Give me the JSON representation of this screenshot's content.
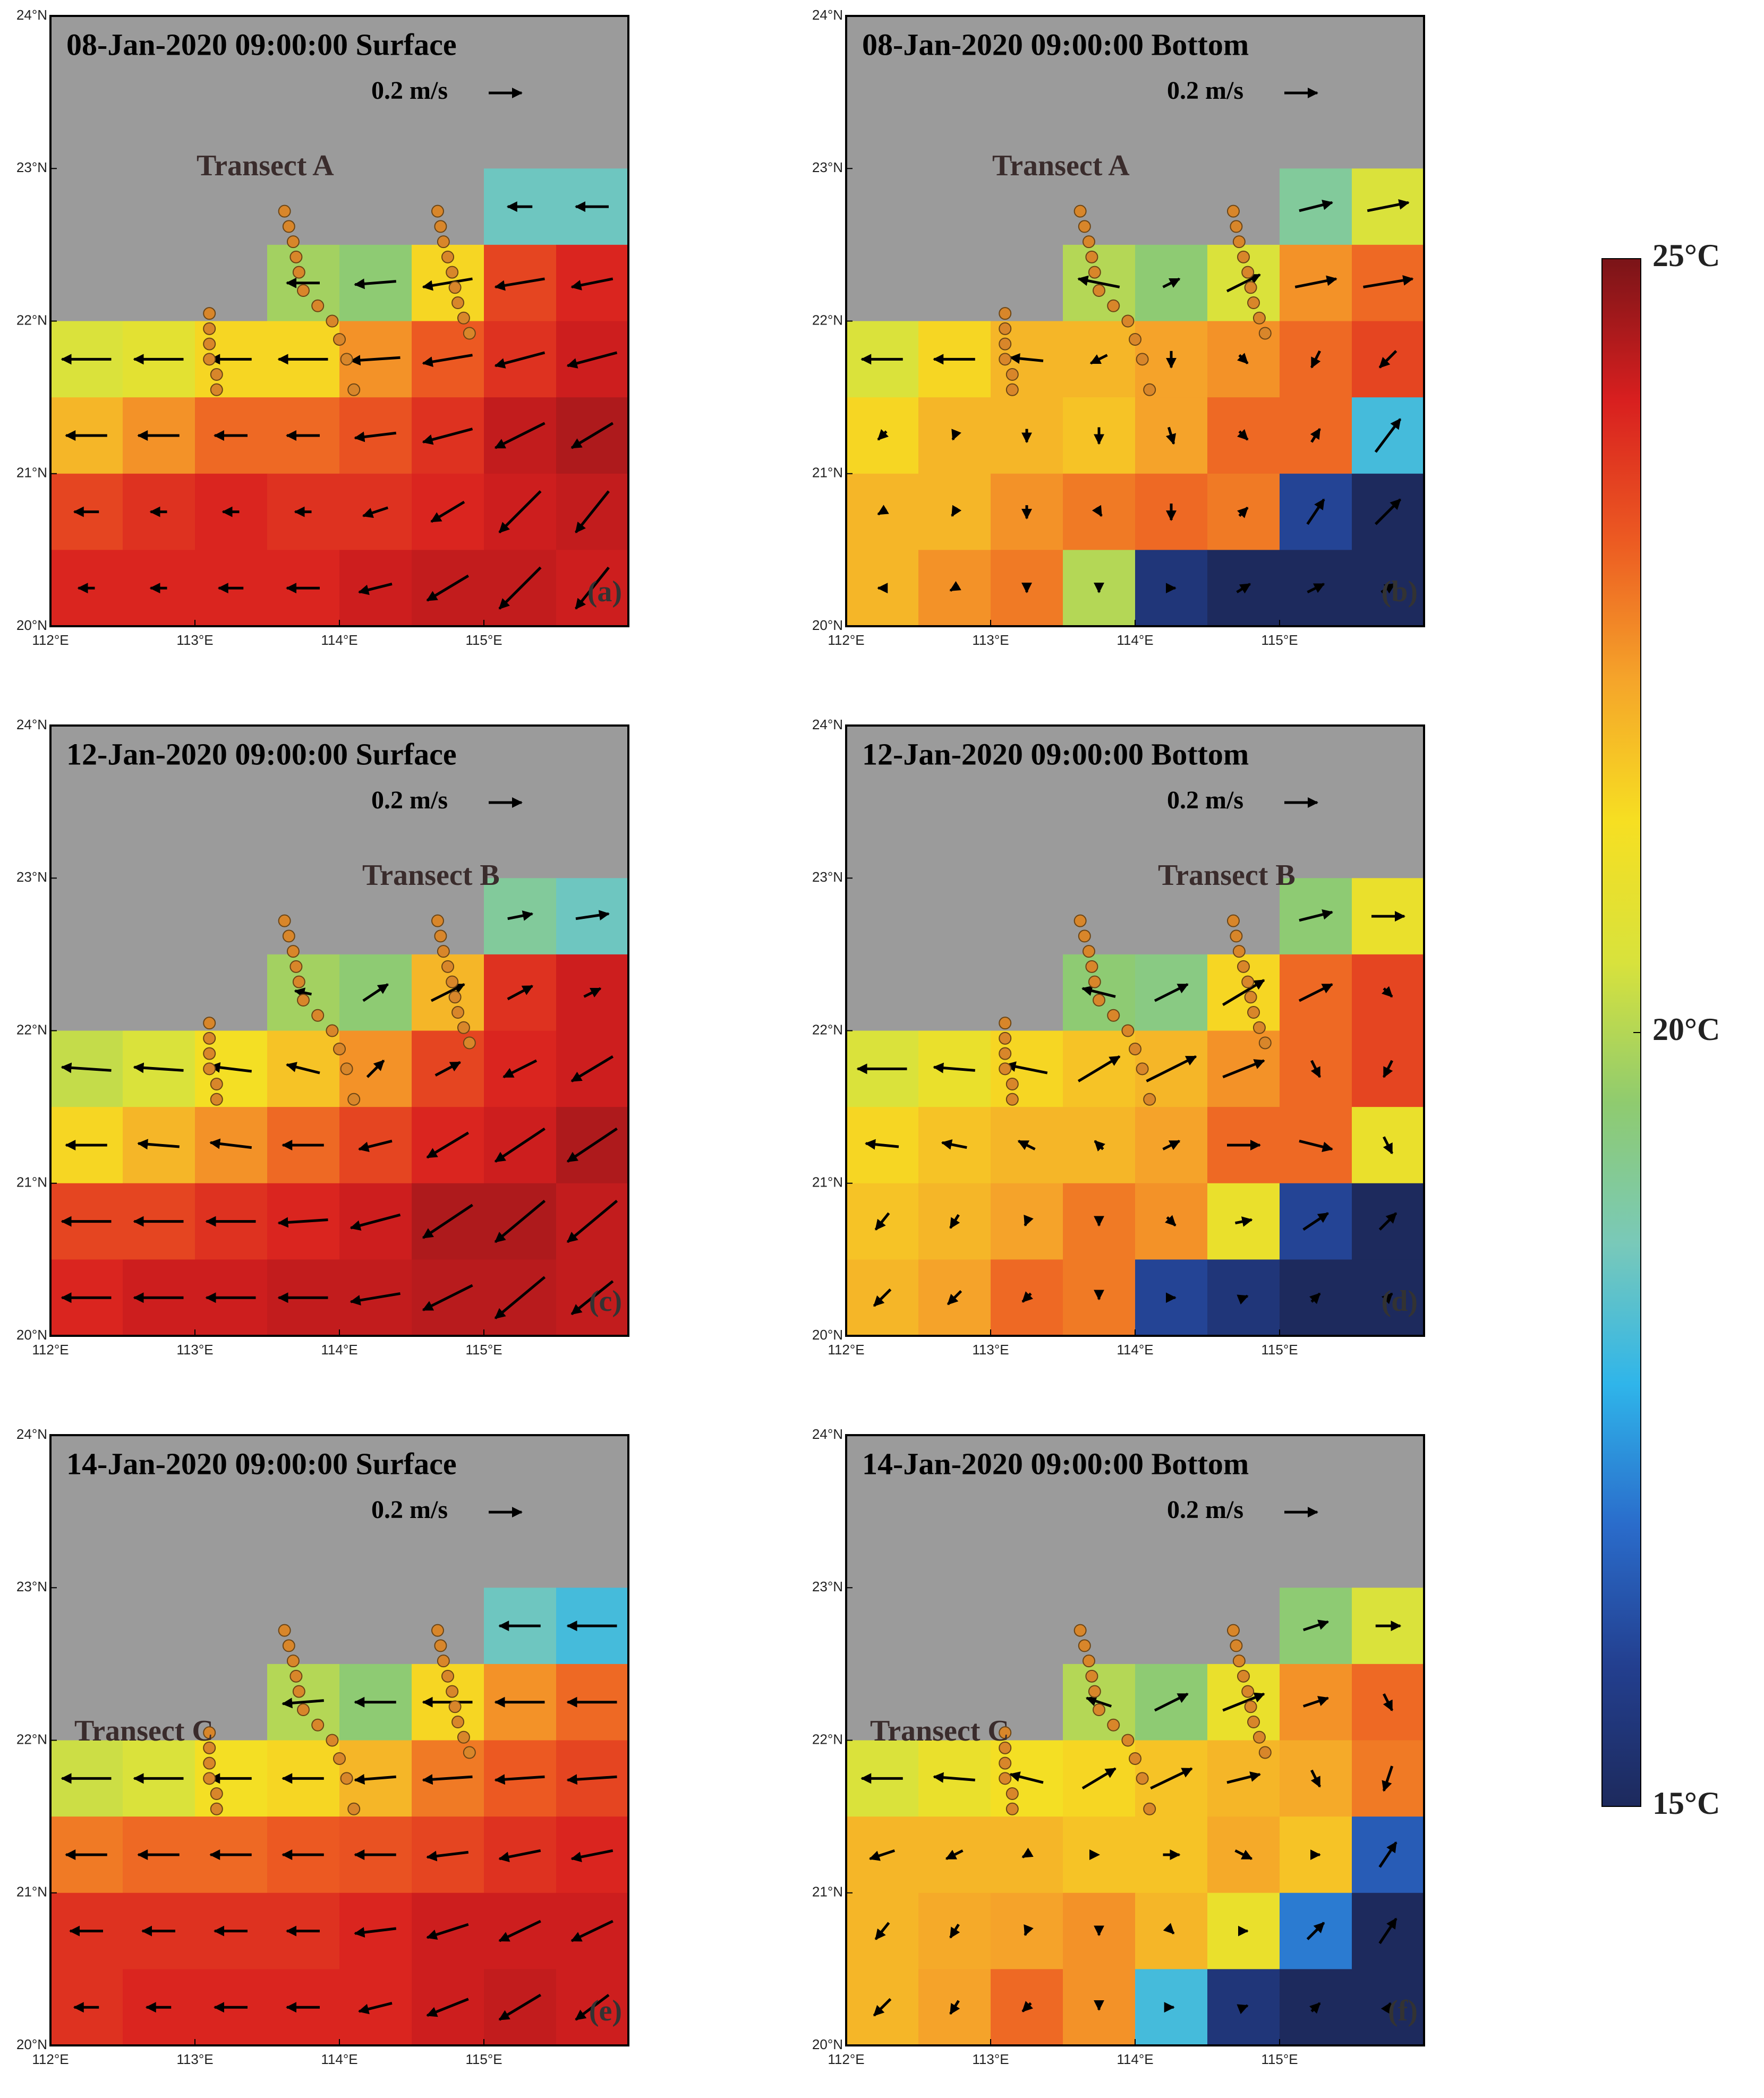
{
  "axes": {
    "xlim": [
      112,
      116
    ],
    "ylim": [
      20,
      24
    ],
    "xticks": [
      {
        "value": 112,
        "label": "112°E"
      },
      {
        "value": 113,
        "label": "113°E"
      },
      {
        "value": 114,
        "label": "114°E"
      },
      {
        "value": 115,
        "label": "115°E"
      }
    ],
    "yticks": [
      {
        "value": 20,
        "label": "20°N"
      },
      {
        "value": 21,
        "label": "21°N"
      },
      {
        "value": 22,
        "label": "22°N"
      },
      {
        "value": 23,
        "label": "23°N"
      },
      {
        "value": 24,
        "label": "24°N"
      }
    ]
  },
  "grid": {
    "lon": [
      112.25,
      112.75,
      113.25,
      113.75,
      114.25,
      114.75,
      115.25,
      115.75
    ],
    "lat": [
      22.75,
      22.25,
      21.75,
      21.25,
      20.75,
      20.25
    ]
  },
  "colorbar": {
    "lim": [
      15,
      25
    ],
    "ticks": [
      {
        "value": 25,
        "label": "25°C"
      },
      {
        "value": 20,
        "label": "20°C"
      },
      {
        "value": 15,
        "label": "15°C"
      }
    ],
    "colormap": [
      "#1d2a5d",
      "#233f8f",
      "#2a6ccb",
      "#2fb5ea",
      "#79c9b9",
      "#8fcb6f",
      "#d8e23c",
      "#f6df22",
      "#f5a52a",
      "#ec5a22",
      "#d81f1f",
      "#7a1418"
    ]
  },
  "stations": {
    "lon": [
      113.1,
      113.1,
      113.1,
      113.1,
      113.15,
      113.15,
      113.62,
      113.65,
      113.68,
      113.7,
      113.72,
      113.75,
      113.85,
      113.95,
      114.0,
      114.05,
      114.1,
      114.68,
      114.7,
      114.72,
      114.75,
      114.78,
      114.8,
      114.82,
      114.86,
      114.9
    ],
    "lat": [
      22.05,
      21.95,
      21.85,
      21.75,
      21.65,
      21.55,
      22.72,
      22.62,
      22.52,
      22.42,
      22.32,
      22.2,
      22.1,
      22.0,
      21.88,
      21.75,
      21.55,
      22.72,
      22.62,
      22.52,
      22.42,
      22.32,
      22.22,
      22.12,
      22.02,
      21.92
    ]
  },
  "chart_data": [
    {
      "type": "heatmap",
      "title": "08-Jan-2020 09:00:00 Surface",
      "label": "(a)",
      "transect": "Transect A",
      "scale": {
        "value": 0.2,
        "label": "0.2 m/s"
      },
      "temperature": [
        [
          null,
          null,
          null,
          null,
          null,
          null,
          18.5,
          18.5
        ],
        [
          null,
          null,
          null,
          19.8,
          19.5,
          21.5,
          23.5,
          24
        ],
        [
          20.5,
          20.8,
          21.5,
          21.5,
          22.5,
          23.2,
          23.8,
          24.2
        ],
        [
          22,
          22.5,
          23,
          23,
          23.3,
          23.8,
          24.3,
          24.5
        ],
        [
          23.5,
          23.8,
          24,
          23.8,
          23.8,
          24,
          24.2,
          24.3
        ],
        [
          24,
          24,
          24,
          24,
          24.2,
          24.3,
          24.3,
          24.2
        ]
      ],
      "u": [
        [
          null,
          null,
          null,
          null,
          null,
          null,
          -0.15,
          -0.2
        ],
        [
          null,
          null,
          null,
          -0.2,
          -0.25,
          -0.3,
          -0.3,
          -0.25
        ],
        [
          -0.3,
          -0.3,
          -0.25,
          -0.3,
          -0.3,
          -0.3,
          -0.3,
          -0.3
        ],
        [
          -0.25,
          -0.25,
          -0.2,
          -0.2,
          -0.25,
          -0.3,
          -0.3,
          -0.25
        ],
        [
          -0.15,
          -0.1,
          -0.1,
          -0.1,
          -0.15,
          -0.2,
          -0.25,
          -0.2
        ],
        [
          -0.1,
          -0.1,
          -0.15,
          -0.2,
          -0.2,
          -0.25,
          -0.25,
          -0.2
        ]
      ],
      "v": [
        [
          null,
          null,
          null,
          null,
          null,
          null,
          0,
          0
        ],
        [
          null,
          null,
          null,
          0,
          -0.02,
          -0.05,
          -0.05,
          -0.05
        ],
        [
          0,
          0,
          0,
          0,
          -0.02,
          -0.05,
          -0.08,
          -0.08
        ],
        [
          0,
          0,
          0,
          0,
          -0.03,
          -0.08,
          -0.15,
          -0.15
        ],
        [
          0,
          0,
          0,
          0,
          -0.05,
          -0.12,
          -0.25,
          -0.25
        ],
        [
          0,
          0,
          0,
          0,
          -0.05,
          -0.15,
          -0.25,
          -0.25
        ]
      ]
    },
    {
      "type": "heatmap",
      "title": "08-Jan-2020 09:00:00 Bottom",
      "label": "(b)",
      "transect": "Transect A",
      "scale": {
        "value": 0.2,
        "label": "0.2 m/s"
      },
      "temperature": [
        [
          null,
          null,
          null,
          null,
          null,
          null,
          19,
          20.5
        ],
        [
          null,
          null,
          null,
          20,
          19.5,
          20.5,
          22.5,
          23
        ],
        [
          20.5,
          21.5,
          22,
          22,
          22.3,
          22.5,
          23,
          23.5
        ],
        [
          21.5,
          22,
          22,
          21.8,
          22.3,
          23,
          23,
          18
        ],
        [
          22,
          22,
          22.5,
          22.8,
          23,
          22.8,
          16,
          15
        ],
        [
          22,
          22.5,
          22.8,
          20,
          15.5,
          15,
          15,
          15
        ]
      ],
      "u": [
        [
          null,
          null,
          null,
          null,
          null,
          null,
          0.2,
          0.25
        ],
        [
          null,
          null,
          null,
          -0.25,
          0.1,
          0.2,
          0.25,
          0.3
        ],
        [
          -0.25,
          -0.25,
          -0.2,
          -0.1,
          0,
          0.05,
          -0.05,
          -0.1
        ],
        [
          -0.05,
          -0.02,
          0,
          0,
          0.03,
          0.05,
          0.05,
          0.15
        ],
        [
          -0.05,
          -0.03,
          0,
          0.03,
          0,
          0.05,
          0.1,
          0.15
        ],
        [
          -0.05,
          -0.05,
          0,
          0,
          0.05,
          0.08,
          0.1,
          0.08
        ]
      ],
      "v": [
        [
          null,
          null,
          null,
          null,
          null,
          null,
          0.05,
          0.05
        ],
        [
          null,
          null,
          null,
          0.05,
          0.05,
          0.1,
          0.05,
          0.05
        ],
        [
          0,
          0,
          0.02,
          -0.05,
          -0.1,
          -0.05,
          -0.1,
          -0.1
        ],
        [
          -0.05,
          -0.05,
          -0.08,
          -0.1,
          -0.1,
          -0.05,
          0.08,
          0.2
        ],
        [
          -0.03,
          -0.05,
          -0.08,
          -0.05,
          -0.1,
          0.05,
          0.15,
          0.15
        ],
        [
          0,
          -0.03,
          -0.05,
          -0.05,
          0,
          0.05,
          0.05,
          0.05
        ]
      ]
    },
    {
      "type": "heatmap",
      "title": "12-Jan-2020 09:00:00 Surface",
      "label": "(c)",
      "transect": "Transect B",
      "scale": {
        "value": 0.2,
        "label": "0.2 m/s"
      },
      "temperature": [
        [
          null,
          null,
          null,
          null,
          null,
          null,
          19,
          18.5
        ],
        [
          null,
          null,
          null,
          19.8,
          19.5,
          22,
          23.8,
          24.2
        ],
        [
          20.2,
          20.5,
          21.3,
          21.8,
          22.5,
          23.5,
          24,
          24.2
        ],
        [
          21.5,
          22,
          22.5,
          23,
          23.5,
          24,
          24.2,
          24.5
        ],
        [
          23.5,
          23.5,
          23.8,
          24,
          24.2,
          24.5,
          24.5,
          24.3
        ],
        [
          24,
          24.2,
          24.2,
          24.3,
          24.3,
          24.4,
          24.4,
          24.3
        ]
      ],
      "u": [
        [
          null,
          null,
          null,
          null,
          null,
          null,
          0.15,
          0.2
        ],
        [
          null,
          null,
          null,
          -0.1,
          0.15,
          0.2,
          0.15,
          0.1
        ],
        [
          -0.3,
          -0.3,
          -0.25,
          -0.2,
          0.1,
          0.15,
          -0.2,
          -0.25
        ],
        [
          -0.25,
          -0.25,
          -0.25,
          -0.25,
          -0.2,
          -0.25,
          -0.3,
          -0.3
        ],
        [
          -0.3,
          -0.3,
          -0.3,
          -0.3,
          -0.3,
          -0.3,
          -0.3,
          -0.3
        ],
        [
          -0.3,
          -0.3,
          -0.3,
          -0.3,
          -0.3,
          -0.3,
          -0.3,
          -0.25
        ]
      ],
      "v": [
        [
          null,
          null,
          null,
          null,
          null,
          null,
          0.03,
          0.03
        ],
        [
          null,
          null,
          null,
          0.02,
          0.1,
          0.1,
          0.08,
          0.05
        ],
        [
          0.02,
          0.02,
          0.03,
          0.05,
          0.1,
          0.08,
          -0.1,
          -0.15
        ],
        [
          0,
          0.02,
          0.03,
          0,
          -0.05,
          -0.15,
          -0.2,
          -0.2
        ],
        [
          0,
          0,
          0,
          -0.02,
          -0.08,
          -0.2,
          -0.25,
          -0.25
        ],
        [
          0,
          0,
          0,
          0,
          -0.05,
          -0.15,
          -0.25,
          -0.2
        ]
      ]
    },
    {
      "type": "heatmap",
      "title": "12-Jan-2020 09:00:00 Bottom",
      "label": "(d)",
      "transect": "Transect B",
      "scale": {
        "value": 0.2,
        "label": "0.2 m/s"
      },
      "temperature": [
        [
          null,
          null,
          null,
          null,
          null,
          null,
          19.5,
          21
        ],
        [
          null,
          null,
          null,
          19.5,
          19.3,
          21.5,
          23,
          23.5
        ],
        [
          20.5,
          21,
          21.5,
          21.8,
          22,
          22.5,
          23,
          23.5
        ],
        [
          21.5,
          21.8,
          22,
          22,
          22.3,
          23,
          23,
          21
        ],
        [
          21.8,
          22,
          22.3,
          22.8,
          22.5,
          21,
          16,
          15
        ],
        [
          22,
          22.3,
          23,
          22.8,
          16,
          15.5,
          15,
          15
        ]
      ],
      "u": [
        [
          null,
          null,
          null,
          null,
          null,
          null,
          0.2,
          0.2
        ],
        [
          null,
          null,
          null,
          -0.2,
          0.2,
          0.25,
          0.2,
          0.05
        ],
        [
          -0.3,
          -0.25,
          -0.25,
          0.25,
          0.3,
          0.25,
          0.05,
          -0.05
        ],
        [
          -0.2,
          -0.15,
          -0.1,
          -0.05,
          0.1,
          0.2,
          0.2,
          0.05
        ],
        [
          -0.08,
          -0.05,
          -0.02,
          0,
          0.05,
          0.1,
          0.15,
          0.1
        ],
        [
          -0.1,
          -0.08,
          -0.05,
          0,
          0.05,
          0.05,
          0.05,
          0.05
        ]
      ],
      "v": [
        [
          null,
          null,
          null,
          null,
          null,
          null,
          0.05,
          0
        ],
        [
          null,
          null,
          null,
          0.05,
          0.1,
          0.15,
          0.1,
          -0.05
        ],
        [
          0,
          0.02,
          0.05,
          0.15,
          0.15,
          0.1,
          -0.1,
          -0.1
        ],
        [
          0.02,
          0.03,
          0.05,
          0.05,
          0.05,
          0,
          -0.05,
          -0.1
        ],
        [
          -0.1,
          -0.08,
          -0.05,
          -0.05,
          -0.05,
          0.02,
          0.1,
          0.1
        ],
        [
          -0.1,
          -0.08,
          -0.05,
          -0.02,
          0,
          0.02,
          0.05,
          0.05
        ]
      ]
    },
    {
      "type": "heatmap",
      "title": "14-Jan-2020 09:00:00 Surface",
      "label": "(e)",
      "transect": "Transect C",
      "scale": {
        "value": 0.2,
        "label": "0.2 m/s"
      },
      "temperature": [
        [
          null,
          null,
          null,
          null,
          null,
          null,
          18.5,
          18
        ],
        [
          null,
          null,
          null,
          20,
          19.5,
          21.5,
          22.5,
          23
        ],
        [
          20.3,
          20.5,
          21.3,
          21.5,
          22,
          22.8,
          23.2,
          23.5
        ],
        [
          22.8,
          23,
          23,
          23.2,
          23.3,
          23.5,
          23.8,
          24
        ],
        [
          23.8,
          23.8,
          23.8,
          23.8,
          24,
          24.2,
          24.2,
          24.2
        ],
        [
          23.8,
          24,
          24,
          24,
          24,
          24.2,
          24.3,
          24.2
        ]
      ],
      "u": [
        [
          null,
          null,
          null,
          null,
          null,
          null,
          -0.25,
          -0.3
        ],
        [
          null,
          null,
          null,
          -0.25,
          -0.25,
          -0.3,
          -0.3,
          -0.3
        ],
        [
          -0.3,
          -0.3,
          -0.25,
          -0.25,
          -0.25,
          -0.3,
          -0.3,
          -0.3
        ],
        [
          -0.25,
          -0.25,
          -0.25,
          -0.25,
          -0.25,
          -0.25,
          -0.25,
          -0.25
        ],
        [
          -0.2,
          -0.2,
          -0.2,
          -0.2,
          -0.25,
          -0.25,
          -0.25,
          -0.25
        ],
        [
          -0.15,
          -0.15,
          -0.2,
          -0.2,
          -0.2,
          -0.25,
          -0.25,
          -0.2
        ]
      ],
      "v": [
        [
          null,
          null,
          null,
          null,
          null,
          null,
          0,
          0
        ],
        [
          null,
          null,
          null,
          -0.02,
          0,
          0,
          0,
          0
        ],
        [
          0,
          0,
          0,
          0,
          -0.02,
          -0.02,
          -0.02,
          -0.02
        ],
        [
          0,
          0,
          0,
          0,
          0,
          -0.03,
          -0.05,
          -0.05
        ],
        [
          0,
          0,
          0,
          0,
          -0.03,
          -0.08,
          -0.12,
          -0.12
        ],
        [
          0,
          0,
          0,
          0,
          -0.05,
          -0.1,
          -0.15,
          -0.15
        ]
      ]
    },
    {
      "type": "heatmap",
      "title": "14-Jan-2020 09:00:00 Bottom",
      "label": "(f)",
      "transect": "Transect C",
      "scale": {
        "value": 0.2,
        "label": "0.2 m/s"
      },
      "temperature": [
        [
          null,
          null,
          null,
          null,
          null,
          null,
          19.5,
          20.5
        ],
        [
          null,
          null,
          null,
          20,
          19.5,
          21,
          22.5,
          23
        ],
        [
          20.5,
          21,
          21.3,
          21.5,
          21.8,
          22,
          22.2,
          22.8
        ],
        [
          22,
          22,
          22,
          21.8,
          21.8,
          22.2,
          21.8,
          16.5
        ],
        [
          22,
          22.2,
          22.3,
          22.5,
          22,
          21,
          17,
          15
        ],
        [
          22,
          22.3,
          23,
          22.5,
          18,
          15.5,
          15,
          15
        ]
      ],
      "u": [
        [
          null,
          null,
          null,
          null,
          null,
          null,
          0.15,
          0.15
        ],
        [
          null,
          null,
          null,
          -0.15,
          0.2,
          0.25,
          0.15,
          0.05
        ],
        [
          -0.25,
          -0.25,
          -0.2,
          0.2,
          0.25,
          0.2,
          0.05,
          -0.05
        ],
        [
          -0.15,
          -0.1,
          -0.05,
          0,
          0.1,
          0.1,
          0.05,
          0.1
        ],
        [
          -0.08,
          -0.05,
          -0.02,
          0,
          0.03,
          0.05,
          0.1,
          0.1
        ],
        [
          -0.1,
          -0.05,
          -0.05,
          0,
          0.03,
          0.05,
          0.05,
          0.03
        ]
      ],
      "v": [
        [
          null,
          null,
          null,
          null,
          null,
          null,
          0.05,
          0
        ],
        [
          null,
          null,
          null,
          0.05,
          0.1,
          0.1,
          0.05,
          -0.1
        ],
        [
          0,
          0.02,
          0.05,
          0.12,
          0.12,
          0.05,
          -0.1,
          -0.15
        ],
        [
          -0.05,
          -0.05,
          -0.03,
          0,
          0,
          -0.05,
          0,
          0.15
        ],
        [
          -0.1,
          -0.08,
          -0.05,
          -0.05,
          -0.03,
          0,
          0.1,
          0.15
        ],
        [
          -0.1,
          -0.08,
          -0.05,
          -0.03,
          0,
          0.02,
          0.05,
          0.05
        ]
      ]
    }
  ]
}
